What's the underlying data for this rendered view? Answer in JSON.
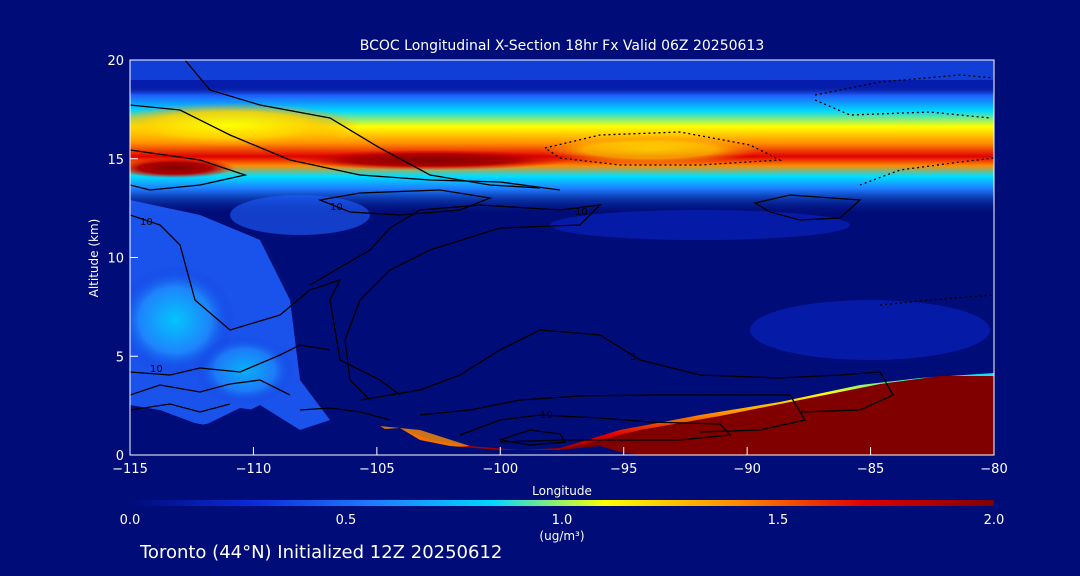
{
  "chart_data": {
    "type": "heatmap",
    "title": "BCOC Longitudinal X-Section 18hr  Fx Valid 06Z 20250613",
    "xlabel": "Longitude",
    "ylabel": "Altitude (km)",
    "xlim": [
      -115,
      -80
    ],
    "ylim": [
      0,
      20
    ],
    "x_ticks": [
      -115,
      -110,
      -105,
      -100,
      -95,
      -90,
      -85,
      -80
    ],
    "y_ticks": [
      0,
      5,
      10,
      15,
      20
    ],
    "colorbar": {
      "label": "(ug/m³)",
      "min": 0.0,
      "max": 2.0,
      "ticks": [
        "0.0",
        "0.5",
        "1.0",
        "1.5",
        "2.0"
      ],
      "colors": [
        "#000c78",
        "#0a2ad8",
        "#1e7bff",
        "#00d8ff",
        "#ffff00",
        "#ff8c00",
        "#e00000",
        "#800000"
      ]
    },
    "features": [
      {
        "description": "elevated BC layer",
        "altitude_km": 14.5,
        "lon_range": [
          -115,
          -80
        ],
        "peak_value": 2.0,
        "peak_lon": -102
      },
      {
        "description": "upper layer",
        "altitude_km": 16.5,
        "lon_range": [
          -115,
          -105
        ],
        "value": 1.2
      },
      {
        "description": "surface smoke plume",
        "lon_range": [
          -98,
          -80
        ],
        "top_km": [
          0.5,
          4.0
        ],
        "value": 2.0
      }
    ],
    "contour_labels": [
      "10",
      "10",
      "10",
      "10",
      "10",
      "5"
    ]
  },
  "footer": {
    "text": "Toronto (44°N) Initialized 12Z 20250612"
  }
}
